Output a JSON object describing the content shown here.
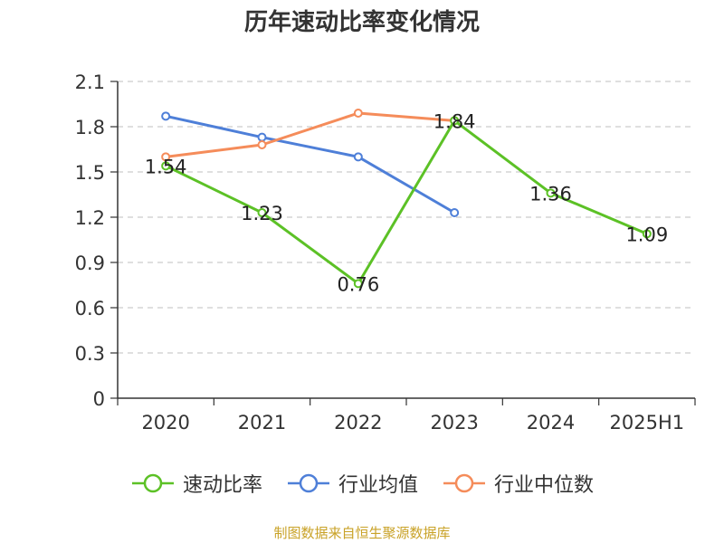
{
  "chart_data": {
    "type": "line",
    "title": "历年速动比率变化情况",
    "categories": [
      "2020",
      "2021",
      "2022",
      "2023",
      "2024",
      "2025H1"
    ],
    "ylim": [
      0,
      2.1
    ],
    "yticks": [
      "0",
      "0.3",
      "0.6",
      "0.9",
      "1.2",
      "1.5",
      "1.8",
      "2.1"
    ],
    "grid": true,
    "legend_position": "bottom",
    "series": [
      {
        "name": "速动比率",
        "color": "#5cc126",
        "values": [
          1.54,
          1.23,
          0.76,
          1.84,
          1.36,
          1.09
        ],
        "labels": [
          "1.54",
          "1.23",
          "0.76",
          "1.84",
          "1.36",
          "1.09"
        ]
      },
      {
        "name": "行业均值",
        "color": "#4e7fd8",
        "values": [
          1.87,
          1.73,
          1.6,
          1.23,
          null,
          null
        ]
      },
      {
        "name": "行业中位数",
        "color": "#f58c5a",
        "values": [
          1.6,
          1.68,
          1.89,
          1.84,
          null,
          null
        ]
      }
    ]
  },
  "source": "制图数据来自恒生聚源数据库"
}
